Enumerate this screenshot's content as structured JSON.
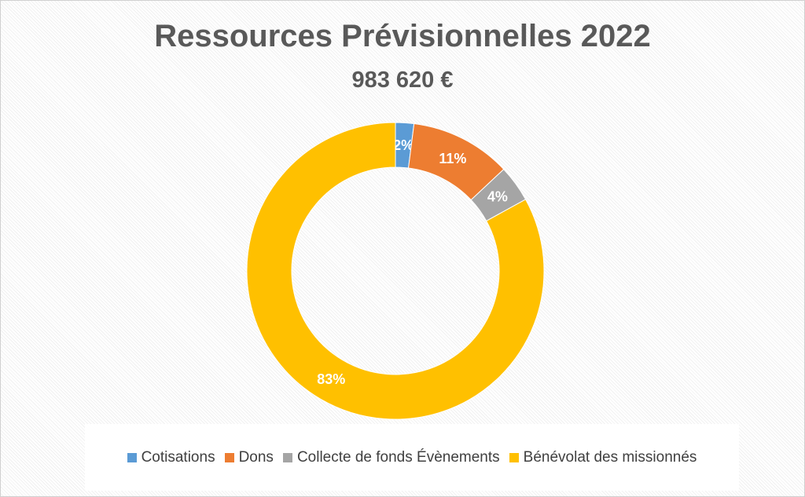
{
  "chart_data": {
    "type": "pie",
    "style": "donut",
    "title": "Ressources Prévisionnelles 2022",
    "subtitle": "983 620 €",
    "categories": [
      "Cotisations",
      "Dons",
      "Collecte de fonds Évènements",
      "Bénévolat des missionnés"
    ],
    "values": [
      2,
      11,
      4,
      83
    ],
    "labels": [
      "2%",
      "11%",
      "4%",
      "83%"
    ],
    "colors": [
      "#5B9BD5",
      "#ED7D31",
      "#A5A5A5",
      "#FFC000"
    ],
    "legend": "bottom"
  }
}
